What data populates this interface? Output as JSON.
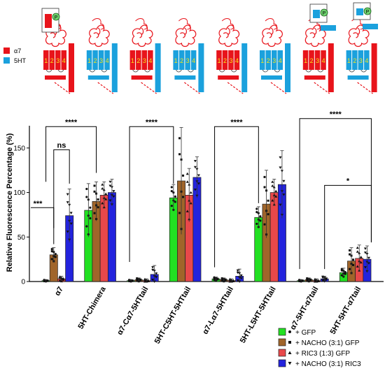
{
  "schematic": {
    "legend": [
      {
        "label": "α7",
        "color": "#e8141b"
      },
      {
        "label": "5HT",
        "color": "#1ba1dd"
      }
    ],
    "constructs": [
      {
        "ecd": "red",
        "tm": [
          "red",
          "red",
          "red",
          "red"
        ],
        "tail": "red"
      },
      {
        "ecd": "red",
        "tm": [
          "blue",
          "blue",
          "blue",
          "blue"
        ],
        "tail": "blue"
      },
      {
        "ecd": "red",
        "tm": [
          "red",
          "red",
          "red",
          "red"
        ],
        "tail": "blue"
      },
      {
        "ecd": "red",
        "tm": [
          "blue",
          "blue",
          "blue",
          "blue"
        ],
        "tail": "blue"
      },
      {
        "ecd": "red",
        "tm": [
          "red",
          "red",
          "red",
          "red"
        ],
        "tail": "blue"
      },
      {
        "ecd": "red",
        "tm": [
          "blue",
          "blue",
          "blue",
          "blue"
        ],
        "tail": "blue"
      },
      {
        "ecd": "red",
        "tm": [
          "red",
          "red",
          "red",
          "red"
        ],
        "tail": "red"
      },
      {
        "ecd": "red",
        "tm": [
          "blue",
          "blue",
          "blue",
          "blue"
        ],
        "tail": "red"
      }
    ],
    "tm_numbers": [
      "1",
      "2",
      "3",
      "4"
    ],
    "phospho_label": "P"
  },
  "chart_data": {
    "type": "bar",
    "ylabel": "Relative Fluorescence Percentage (%)",
    "ylim": [
      0,
      175
    ],
    "yticks": [
      0,
      50,
      100,
      150
    ],
    "categories": [
      "α7",
      "5HT-Chimera",
      "α7-Cα7-5HTtail",
      "5HT-C5HT-5HTtail",
      "α7-Lα7-5HTtail",
      "5HT-L5HT-5HTtail",
      "α7-5HT-α7tail",
      "5HT-5HT-α7tail"
    ],
    "series": [
      {
        "name": "+ GFP",
        "color": "#22e022",
        "marker": "circle",
        "values": [
          1,
          80,
          1,
          94,
          3,
          72,
          1,
          10
        ],
        "errors": [
          1,
          30,
          1,
          15,
          2,
          12,
          1,
          5
        ]
      },
      {
        "name": "+ NACHO (3:1) GFP",
        "color": "#a0652a",
        "marker": "square",
        "values": [
          30,
          90,
          2,
          113,
          2,
          87,
          2,
          23
        ],
        "errors": [
          8,
          22,
          2,
          60,
          2,
          38,
          2,
          15
        ]
      },
      {
        "name": "+ RIC3 (1:3) GFP",
        "color": "#e8484a",
        "marker": "triangle-up",
        "values": [
          3,
          97,
          1,
          97,
          1,
          100,
          1,
          26
        ],
        "errors": [
          3,
          15,
          2,
          30,
          2,
          15,
          2,
          15
        ]
      },
      {
        "name": "+ NACHO (3:1) RIC3",
        "color": "#2323dd",
        "marker": "triangle-down",
        "values": [
          74,
          100,
          8,
          117,
          6,
          109,
          3,
          25
        ],
        "errors": [
          30,
          15,
          10,
          23,
          8,
          38,
          3,
          15
        ]
      }
    ],
    "significance": [
      {
        "label": "****",
        "from": 0,
        "to": 1
      },
      {
        "label": "ns",
        "from": 0,
        "to": 0
      },
      {
        "label": "***",
        "from": 0,
        "to": 0
      },
      {
        "label": "****",
        "from": 2,
        "to": 3
      },
      {
        "label": "****",
        "from": 4,
        "to": 5
      },
      {
        "label": "****",
        "from": 6,
        "to": 7
      },
      {
        "label": "*",
        "from": 6,
        "to": 7
      }
    ],
    "legend_position": "bottom-right"
  }
}
